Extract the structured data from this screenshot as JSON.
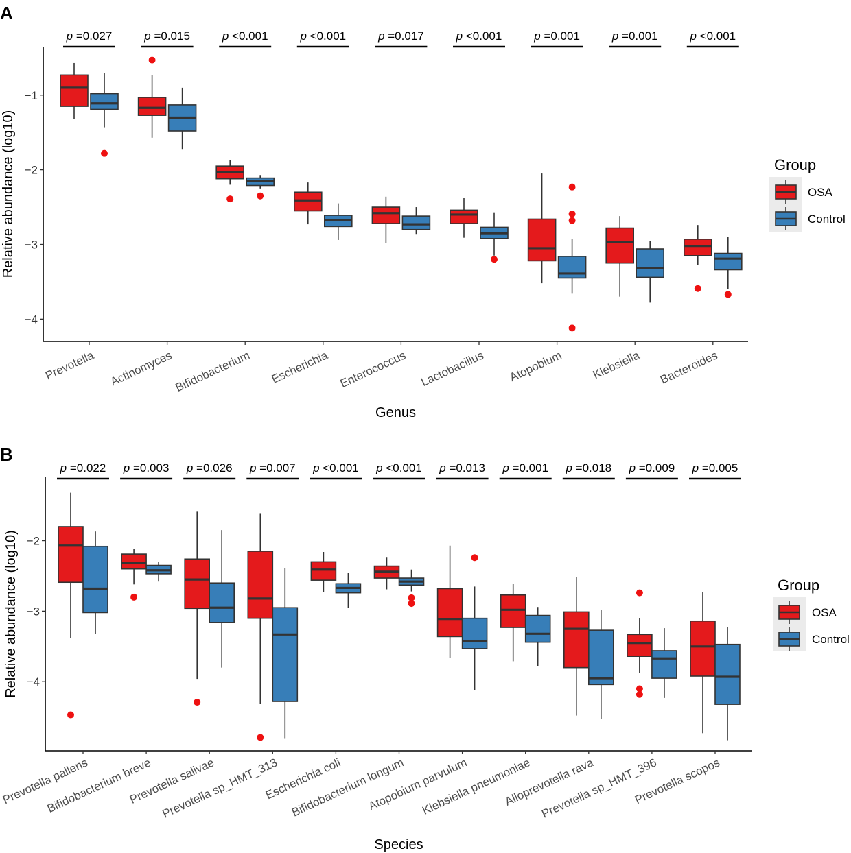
{
  "colors": {
    "osa": "#E41A1C",
    "control": "#377EB8",
    "outlier": "#EE1111",
    "line": "#333333"
  },
  "chart_data": [
    {
      "type": "boxplot",
      "panel_label": "A",
      "xlabel": "Genus",
      "ylabel": "Relative abundance (log10)",
      "ylim": [
        -4.3,
        -0.35
      ],
      "yticks": [
        -1,
        -2,
        -3,
        -4
      ],
      "ytick_labels": [
        "−1",
        "−2",
        "−3",
        "−4"
      ],
      "legend": {
        "title": "Group",
        "position": "right",
        "entries": [
          "OSA",
          "Control"
        ]
      },
      "categories": [
        "Prevotella",
        "Actinomyces",
        "Bifidobacterium",
        "Escherichia",
        "Enterococcus",
        "Lactobacillus",
        "Atopobium",
        "Klebsiella",
        "Bacteroides"
      ],
      "p_values": [
        {
          "p": "p",
          "text": " =0.027"
        },
        {
          "p": "p",
          "text": " =0.015"
        },
        {
          "p": "p",
          "text": " <0.001"
        },
        {
          "p": "p",
          "text": " <0.001"
        },
        {
          "p": "p",
          "text": " =0.017"
        },
        {
          "p": "p",
          "text": " <0.001"
        },
        {
          "p": "p",
          "text": " =0.001"
        },
        {
          "p": "p",
          "text": " =0.001"
        },
        {
          "p": "p",
          "text": " <0.001"
        }
      ],
      "series": [
        {
          "name": "OSA",
          "boxes": [
            {
              "wl": -1.32,
              "q1": -1.15,
              "med": -0.9,
              "q3": -0.73,
              "wh": -0.57,
              "out": []
            },
            {
              "wl": -1.57,
              "q1": -1.27,
              "med": -1.17,
              "q3": -1.03,
              "wh": -0.73,
              "out": [
                -0.53
              ]
            },
            {
              "wl": -2.2,
              "q1": -2.12,
              "med": -2.03,
              "q3": -1.95,
              "wh": -1.87,
              "out": [
                -2.39
              ]
            },
            {
              "wl": -2.73,
              "q1": -2.55,
              "med": -2.41,
              "q3": -2.3,
              "wh": -2.17,
              "out": []
            },
            {
              "wl": -2.98,
              "q1": -2.72,
              "med": -2.58,
              "q3": -2.5,
              "wh": -2.36,
              "out": []
            },
            {
              "wl": -2.91,
              "q1": -2.72,
              "med": -2.6,
              "q3": -2.54,
              "wh": -2.38,
              "out": []
            },
            {
              "wl": -3.52,
              "q1": -3.22,
              "med": -3.05,
              "q3": -2.66,
              "wh": -2.05,
              "out": []
            },
            {
              "wl": -3.7,
              "q1": -3.25,
              "med": -2.97,
              "q3": -2.78,
              "wh": -2.62,
              "out": []
            },
            {
              "wl": -3.28,
              "q1": -3.15,
              "med": -3.02,
              "q3": -2.93,
              "wh": -2.74,
              "out": [
                -3.59
              ]
            }
          ]
        },
        {
          "name": "Control",
          "boxes": [
            {
              "wl": -1.43,
              "q1": -1.19,
              "med": -1.11,
              "q3": -0.98,
              "wh": -0.7,
              "out": [
                -1.78
              ]
            },
            {
              "wl": -1.73,
              "q1": -1.48,
              "med": -1.3,
              "q3": -1.13,
              "wh": -0.9,
              "out": []
            },
            {
              "wl": -2.25,
              "q1": -2.21,
              "med": -2.15,
              "q3": -2.11,
              "wh": -2.07,
              "out": [
                -2.35
              ]
            },
            {
              "wl": -2.94,
              "q1": -2.76,
              "med": -2.67,
              "q3": -2.61,
              "wh": -2.45,
              "out": []
            },
            {
              "wl": -2.86,
              "q1": -2.8,
              "med": -2.73,
              "q3": -2.62,
              "wh": -2.5,
              "out": []
            },
            {
              "wl": -3.15,
              "q1": -2.92,
              "med": -2.85,
              "q3": -2.77,
              "wh": -2.57,
              "out": [
                -3.2
              ]
            },
            {
              "wl": -3.66,
              "q1": -3.45,
              "med": -3.39,
              "q3": -3.16,
              "wh": -2.93,
              "out": [
                -2.23,
                -2.59,
                -2.68,
                -4.12
              ]
            },
            {
              "wl": -3.78,
              "q1": -3.44,
              "med": -3.32,
              "q3": -3.06,
              "wh": -2.95,
              "out": []
            },
            {
              "wl": -3.6,
              "q1": -3.34,
              "med": -3.19,
              "q3": -3.12,
              "wh": -2.9,
              "out": [
                -3.67
              ]
            }
          ]
        }
      ]
    },
    {
      "type": "boxplot",
      "panel_label": "B",
      "xlabel": "Species",
      "ylabel": "Relative abundance (log10)",
      "ylim": [
        -4.98,
        -1.1
      ],
      "yticks": [
        -2,
        -3,
        -4
      ],
      "ytick_labels": [
        "−2",
        "−3",
        "−4"
      ],
      "legend": {
        "title": "Group",
        "position": "right",
        "entries": [
          "OSA",
          "Control"
        ]
      },
      "categories": [
        "Prevotella pallens",
        "Bifidobacterium breve",
        "Prevotella salivae",
        "Prevotella sp_HMT_313",
        "Escherichia coli",
        "Bifidobacterium longum",
        "Atopobium parvulum",
        "Klebsiella pneumoniae",
        "Alloprevotella rava",
        "Prevotella sp_HMT_396",
        "Prevotella scopos"
      ],
      "p_values": [
        {
          "p": "p",
          "text": " =0.022"
        },
        {
          "p": "p",
          "text": " =0.003"
        },
        {
          "p": "p",
          "text": " =0.026"
        },
        {
          "p": "p",
          "text": " =0.007"
        },
        {
          "p": "p",
          "text": " <0.001"
        },
        {
          "p": "p",
          "text": " <0.001"
        },
        {
          "p": "p",
          "text": " =0.013"
        },
        {
          "p": "p",
          "text": " =0.001"
        },
        {
          "p": "p",
          "text": " =0.018"
        },
        {
          "p": "p",
          "text": " =0.009"
        },
        {
          "p": "p",
          "text": " =0.005"
        }
      ],
      "series": [
        {
          "name": "OSA",
          "boxes": [
            {
              "wl": -3.38,
              "q1": -2.59,
              "med": -2.07,
              "q3": -1.8,
              "wh": -1.32,
              "out": [
                -4.47
              ]
            },
            {
              "wl": -2.62,
              "q1": -2.4,
              "med": -2.32,
              "q3": -2.19,
              "wh": -2.12,
              "out": [
                -2.8
              ]
            },
            {
              "wl": -3.96,
              "q1": -2.96,
              "med": -2.55,
              "q3": -2.26,
              "wh": -1.58,
              "out": [
                -4.29
              ]
            },
            {
              "wl": -4.31,
              "q1": -3.1,
              "med": -2.82,
              "q3": -2.15,
              "wh": -1.61,
              "out": [
                -4.79
              ]
            },
            {
              "wl": -2.73,
              "q1": -2.56,
              "med": -2.41,
              "q3": -2.3,
              "wh": -2.16,
              "out": []
            },
            {
              "wl": -2.69,
              "q1": -2.53,
              "med": -2.44,
              "q3": -2.36,
              "wh": -2.24,
              "out": []
            },
            {
              "wl": -3.66,
              "q1": -3.36,
              "med": -3.11,
              "q3": -2.68,
              "wh": -2.07,
              "out": []
            },
            {
              "wl": -3.71,
              "q1": -3.23,
              "med": -2.98,
              "q3": -2.77,
              "wh": -2.61,
              "out": []
            },
            {
              "wl": -4.48,
              "q1": -3.8,
              "med": -3.25,
              "q3": -3.01,
              "wh": -2.51,
              "out": []
            },
            {
              "wl": -3.88,
              "q1": -3.64,
              "med": -3.45,
              "q3": -3.33,
              "wh": -3.1,
              "out": [
                -2.74,
                -4.1,
                -4.18
              ]
            },
            {
              "wl": -4.73,
              "q1": -3.92,
              "med": -3.5,
              "q3": -3.14,
              "wh": -2.73,
              "out": []
            }
          ]
        },
        {
          "name": "Control",
          "boxes": [
            {
              "wl": -3.32,
              "q1": -3.02,
              "med": -2.68,
              "q3": -2.08,
              "wh": -1.87,
              "out": []
            },
            {
              "wl": -2.58,
              "q1": -2.47,
              "med": -2.42,
              "q3": -2.35,
              "wh": -2.3,
              "out": []
            },
            {
              "wl": -3.8,
              "q1": -3.16,
              "med": -2.95,
              "q3": -2.6,
              "wh": -1.85,
              "out": []
            },
            {
              "wl": -4.81,
              "q1": -4.28,
              "med": -3.33,
              "q3": -2.95,
              "wh": -2.39,
              "out": []
            },
            {
              "wl": -2.95,
              "q1": -2.74,
              "med": -2.67,
              "q3": -2.61,
              "wh": -2.46,
              "out": []
            },
            {
              "wl": -2.72,
              "q1": -2.63,
              "med": -2.58,
              "q3": -2.53,
              "wh": -2.41,
              "out": [
                -2.81,
                -2.89
              ]
            },
            {
              "wl": -4.12,
              "q1": -3.53,
              "med": -3.42,
              "q3": -3.1,
              "wh": -2.65,
              "out": [
                -2.24
              ]
            },
            {
              "wl": -3.78,
              "q1": -3.44,
              "med": -3.32,
              "q3": -3.06,
              "wh": -2.94,
              "out": []
            },
            {
              "wl": -4.53,
              "q1": -4.04,
              "med": -3.95,
              "q3": -3.27,
              "wh": -2.98,
              "out": []
            },
            {
              "wl": -4.23,
              "q1": -3.95,
              "med": -3.67,
              "q3": -3.56,
              "wh": -3.24,
              "out": []
            },
            {
              "wl": -4.83,
              "q1": -4.32,
              "med": -3.93,
              "q3": -3.47,
              "wh": -3.22,
              "out": []
            }
          ]
        }
      ]
    }
  ]
}
